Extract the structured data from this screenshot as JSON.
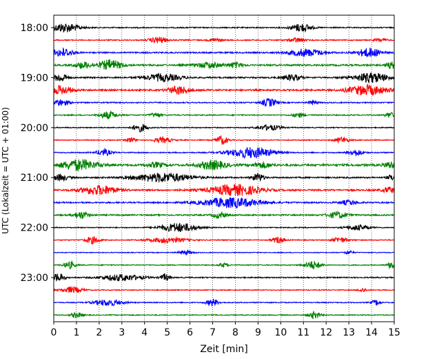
{
  "chart_data": {
    "type": "line",
    "xlabel": "Zeit  [min]",
    "ylabel": "UTC (Lokalzeit = UTC + 01:00)",
    "xlim": [
      0,
      15
    ],
    "x_ticks": [
      0,
      1,
      2,
      3,
      4,
      5,
      6,
      7,
      8,
      9,
      10,
      11,
      12,
      13,
      14,
      15
    ],
    "x_tick_labels": [
      "0",
      "1",
      "2",
      "3",
      "4",
      "5",
      "6",
      "7",
      "8",
      "9",
      "10",
      "11",
      "12",
      "13",
      "14",
      "15"
    ],
    "y_tick_labels": [
      "18:00",
      "19:00",
      "20:00",
      "21:00",
      "22:00",
      "23:00"
    ],
    "rows_per_hour": 4,
    "row_minutes": 15,
    "grid": "x-dotted",
    "line_colors": [
      "#000000",
      "#ff0000",
      "#0000ff",
      "#008000"
    ],
    "rows": [
      {
        "start": "18:00",
        "noise": 0.12,
        "events": [
          [
            0.5,
            1.0,
            1.0
          ],
          [
            10.9,
            0.7,
            0.9
          ]
        ]
      },
      {
        "start": "18:15",
        "noise": 0.12,
        "events": [
          [
            4.6,
            0.6,
            0.7
          ],
          [
            7.1,
            0.4,
            0.4
          ],
          [
            10.7,
            0.5,
            0.5
          ],
          [
            14.4,
            0.4,
            0.4
          ]
        ]
      },
      {
        "start": "18:30",
        "noise": 0.15,
        "events": [
          [
            0.4,
            0.7,
            0.9
          ],
          [
            11.1,
            1.2,
            0.8
          ],
          [
            13.9,
            0.8,
            1.0
          ]
        ]
      },
      {
        "start": "18:45",
        "noise": 0.18,
        "events": [
          [
            1.3,
            0.6,
            0.7
          ],
          [
            2.5,
            0.8,
            1.1
          ],
          [
            6.8,
            0.9,
            0.6
          ],
          [
            8.0,
            0.5,
            0.6
          ],
          [
            14.9,
            0.4,
            0.7
          ]
        ]
      },
      {
        "start": "19:00",
        "noise": 0.15,
        "events": [
          [
            0.3,
            0.5,
            0.9
          ],
          [
            4.8,
            1.2,
            0.8
          ],
          [
            10.5,
            0.6,
            0.7
          ],
          [
            14.0,
            1.2,
            1.1
          ]
        ]
      },
      {
        "start": "19:15",
        "noise": 0.18,
        "events": [
          [
            0.3,
            0.8,
            0.9
          ],
          [
            5.5,
            0.7,
            0.9
          ],
          [
            13.8,
            1.3,
            1.1
          ]
        ]
      },
      {
        "start": "19:30",
        "noise": 0.12,
        "events": [
          [
            0.3,
            0.6,
            0.7
          ],
          [
            9.5,
            0.5,
            0.9
          ],
          [
            11.4,
            0.3,
            0.5
          ]
        ]
      },
      {
        "start": "19:45",
        "noise": 0.12,
        "events": [
          [
            2.4,
            0.6,
            0.8
          ],
          [
            4.5,
            0.4,
            0.5
          ],
          [
            10.8,
            0.4,
            0.5
          ],
          [
            14.8,
            0.3,
            0.6
          ]
        ]
      },
      {
        "start": "20:00",
        "noise": 0.1,
        "events": [
          [
            3.8,
            0.5,
            0.9
          ],
          [
            9.5,
            0.8,
            0.6
          ]
        ]
      },
      {
        "start": "20:15",
        "noise": 0.1,
        "events": [
          [
            3.4,
            0.3,
            0.6
          ],
          [
            4.8,
            0.6,
            0.6
          ],
          [
            7.4,
            0.4,
            1.0
          ],
          [
            12.7,
            0.5,
            0.6
          ]
        ]
      },
      {
        "start": "20:30",
        "noise": 0.12,
        "events": [
          [
            2.2,
            0.5,
            0.7
          ],
          [
            8.7,
            1.5,
            1.2
          ],
          [
            13.3,
            0.5,
            0.7
          ]
        ]
      },
      {
        "start": "20:45",
        "noise": 0.22,
        "events": [
          [
            1.1,
            1.2,
            1.2
          ],
          [
            4.5,
            0.6,
            0.5
          ],
          [
            7.0,
            0.9,
            1.0
          ],
          [
            9.2,
            0.6,
            0.6
          ],
          [
            14.8,
            0.4,
            0.7
          ]
        ]
      },
      {
        "start": "21:00",
        "noise": 0.15,
        "events": [
          [
            0.3,
            0.5,
            0.7
          ],
          [
            4.8,
            2.0,
            1.0
          ],
          [
            9.0,
            0.4,
            0.9
          ],
          [
            14.9,
            0.3,
            0.6
          ]
        ]
      },
      {
        "start": "21:15",
        "noise": 0.18,
        "events": [
          [
            2.0,
            1.2,
            1.0
          ],
          [
            8.0,
            1.7,
            1.2
          ],
          [
            14.8,
            0.5,
            0.6
          ]
        ]
      },
      {
        "start": "21:30",
        "noise": 0.15,
        "events": [
          [
            7.8,
            2.0,
            1.1
          ],
          [
            13.0,
            0.6,
            0.5
          ]
        ]
      },
      {
        "start": "21:45",
        "noise": 0.15,
        "events": [
          [
            1.2,
            0.5,
            0.8
          ],
          [
            7.3,
            0.5,
            0.6
          ],
          [
            12.5,
            0.7,
            0.7
          ]
        ]
      },
      {
        "start": "22:00",
        "noise": 0.1,
        "events": [
          [
            5.5,
            1.2,
            1.0
          ],
          [
            13.4,
            0.8,
            0.6
          ]
        ]
      },
      {
        "start": "22:15",
        "noise": 0.1,
        "events": [
          [
            1.7,
            0.5,
            0.8
          ],
          [
            5.0,
            1.3,
            0.6
          ],
          [
            9.9,
            0.4,
            0.7
          ],
          [
            12.6,
            0.5,
            0.6
          ]
        ]
      },
      {
        "start": "22:30",
        "noise": 0.08,
        "events": [
          [
            5.8,
            0.5,
            0.5
          ],
          [
            13.0,
            0.3,
            0.4
          ]
        ]
      },
      {
        "start": "22:45",
        "noise": 0.1,
        "events": [
          [
            0.7,
            0.4,
            0.8
          ],
          [
            7.5,
            0.3,
            0.5
          ],
          [
            11.4,
            0.6,
            0.9
          ],
          [
            14.9,
            0.3,
            0.9
          ]
        ]
      },
      {
        "start": "23:00",
        "noise": 0.12,
        "events": [
          [
            0.2,
            0.4,
            0.9
          ],
          [
            3.0,
            1.4,
            0.7
          ],
          [
            4.9,
            0.3,
            0.8
          ]
        ]
      },
      {
        "start": "23:15",
        "noise": 0.1,
        "events": [
          [
            0.8,
            0.7,
            0.7
          ],
          [
            13.6,
            0.3,
            0.4
          ]
        ]
      },
      {
        "start": "23:30",
        "noise": 0.1,
        "events": [
          [
            2.4,
            1.0,
            0.7
          ],
          [
            7.0,
            0.4,
            0.8
          ],
          [
            14.2,
            0.3,
            0.6
          ]
        ]
      },
      {
        "start": "23:45",
        "noise": 0.1,
        "events": [
          [
            1.0,
            0.4,
            0.6
          ],
          [
            11.5,
            0.4,
            0.8
          ]
        ]
      }
    ]
  }
}
